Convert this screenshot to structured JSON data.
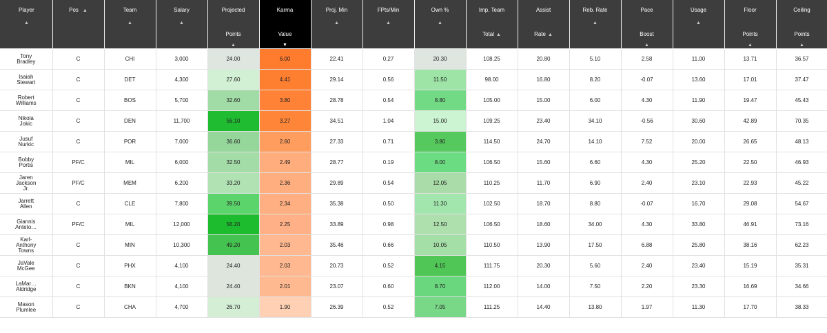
{
  "table": {
    "sorted_column": "karma",
    "columns": [
      {
        "key": "player",
        "lines": [
          "Player"
        ],
        "arrow": "below"
      },
      {
        "key": "pos",
        "lines": [
          "Pos"
        ],
        "arrow": "right"
      },
      {
        "key": "team",
        "lines": [
          "Team"
        ],
        "arrow": "below"
      },
      {
        "key": "salary",
        "lines": [
          "Salary"
        ],
        "arrow": "below"
      },
      {
        "key": "proj_points",
        "lines": [
          "Projected",
          "Points"
        ],
        "arrow": "below3"
      },
      {
        "key": "karma",
        "lines": [
          "Karma",
          "Value"
        ],
        "arrow": "below3"
      },
      {
        "key": "proj_min",
        "lines": [
          "Proj. Min"
        ],
        "arrow": "below"
      },
      {
        "key": "fpts_min",
        "lines": [
          "FPts/Min"
        ],
        "arrow": "below"
      },
      {
        "key": "own",
        "lines": [
          "Own %"
        ],
        "arrow": "below"
      },
      {
        "key": "imp_total",
        "lines": [
          "Imp. Team",
          "Total"
        ],
        "arrow": "inline2"
      },
      {
        "key": "assist_rate",
        "lines": [
          "Assist",
          "Rate"
        ],
        "arrow": "inline2"
      },
      {
        "key": "reb_rate",
        "lines": [
          "Reb. Rate"
        ],
        "arrow": "below"
      },
      {
        "key": "pace_boost",
        "lines": [
          "Pace",
          "Boost"
        ],
        "arrow": "below3"
      },
      {
        "key": "usage",
        "lines": [
          "Usage"
        ],
        "arrow": "below"
      },
      {
        "key": "floor",
        "lines": [
          "Floor",
          "Points"
        ],
        "arrow": "below3"
      },
      {
        "key": "ceiling",
        "lines": [
          "Ceiling",
          "Points"
        ],
        "arrow": "below3"
      }
    ],
    "rows": [
      {
        "player": [
          "Tony",
          "Bradley"
        ],
        "pos": "C",
        "team": "CHI",
        "salary": "3,000",
        "proj_points": "24.00",
        "karma": "6.00",
        "proj_min": "22.41",
        "fpts_min": "0.27",
        "own": "20.30",
        "imp_total": "108.25",
        "assist_rate": "20.80",
        "reb_rate": "5.10",
        "pace_boost": "2.58",
        "usage": "11.00",
        "floor": "13.71",
        "ceiling": "36.57",
        "colors": {
          "proj_points": "#dfe6df",
          "karma": "#ff7b2e",
          "own": "#dfe6df"
        }
      },
      {
        "player": [
          "Isaiah",
          "Stewart"
        ],
        "pos": "C",
        "team": "DET",
        "salary": "4,300",
        "proj_points": "27.60",
        "karma": "4.41",
        "proj_min": "29.14",
        "fpts_min": "0.56",
        "own": "11.50",
        "imp_total": "98.00",
        "assist_rate": "16.80",
        "reb_rate": "8.20",
        "pace_boost": "-0.07",
        "usage": "13.60",
        "floor": "17.01",
        "ceiling": "37.47",
        "colors": {
          "proj_points": "#d2f0d4",
          "karma": "#ff7f31",
          "own": "#9de4a6"
        }
      },
      {
        "player": [
          "Robert",
          "Williams"
        ],
        "pos": "C",
        "team": "BOS",
        "salary": "5,700",
        "proj_points": "32.60",
        "karma": "3.80",
        "proj_min": "28.78",
        "fpts_min": "0.54",
        "own": "8.80",
        "imp_total": "105.00",
        "assist_rate": "15.00",
        "reb_rate": "6.00",
        "pace_boost": "4.30",
        "usage": "11.90",
        "floor": "19.47",
        "ceiling": "45.43",
        "colors": {
          "proj_points": "#a1dba5",
          "karma": "#ff8236",
          "own": "#72d985"
        }
      },
      {
        "player": [
          "Nikola",
          "Jokic"
        ],
        "pos": "C",
        "team": "DEN",
        "salary": "11,700",
        "proj_points": "56.10",
        "karma": "3.27",
        "proj_min": "34.51",
        "fpts_min": "1.04",
        "own": "15.00",
        "imp_total": "109.25",
        "assist_rate": "23.40",
        "reb_rate": "34.10",
        "pace_boost": "-0.56",
        "usage": "30.60",
        "floor": "42.89",
        "ceiling": "70.35",
        "colors": {
          "proj_points": "#1fbb30",
          "karma": "#ff8639",
          "own": "#ccf3d2"
        }
      },
      {
        "player": [
          "Jusuf",
          "Nurkic"
        ],
        "pos": "C",
        "team": "POR",
        "salary": "7,000",
        "proj_points": "36.60",
        "karma": "2.60",
        "proj_min": "27.33",
        "fpts_min": "0.71",
        "own": "3.80",
        "imp_total": "114.50",
        "assist_rate": "24.70",
        "reb_rate": "14.10",
        "pace_boost": "7.52",
        "usage": "20.00",
        "floor": "26.65",
        "ceiling": "48.13",
        "colors": {
          "proj_points": "#95d69a",
          "karma": "#ff9d5e",
          "own": "#55c95d"
        }
      },
      {
        "player": [
          "Bobby",
          "Portis"
        ],
        "pos": "PF/C",
        "team": "MIL",
        "salary": "6,000",
        "proj_points": "32.50",
        "karma": "2.49",
        "proj_min": "28.77",
        "fpts_min": "0.19",
        "own": "8.00",
        "imp_total": "106.50",
        "assist_rate": "15.60",
        "reb_rate": "6.60",
        "pace_boost": "4.30",
        "usage": "25.20",
        "floor": "22.50",
        "ceiling": "46.93",
        "colors": {
          "proj_points": "#a4dca8",
          "karma": "#ffad7d",
          "own": "#6cdc82"
        }
      },
      {
        "player": [
          "Jaren",
          "Jackson",
          "Jr."
        ],
        "pos": "PF/C",
        "team": "MEM",
        "salary": "6,200",
        "proj_points": "33.20",
        "karma": "2.36",
        "proj_min": "29.89",
        "fpts_min": "0.54",
        "own": "12.05",
        "imp_total": "110.25",
        "assist_rate": "11.70",
        "reb_rate": "6.90",
        "pace_boost": "2.40",
        "usage": "23.10",
        "floor": "22.93",
        "ceiling": "45.22",
        "colors": {
          "proj_points": "#b1e2b4",
          "karma": "#ffae7f",
          "own": "#a9dca9"
        }
      },
      {
        "player": [
          "Jarrett",
          "Allen"
        ],
        "pos": "C",
        "team": "CLE",
        "salary": "7,800",
        "proj_points": "39.50",
        "karma": "2.34",
        "proj_min": "35.38",
        "fpts_min": "0.50",
        "own": "11.30",
        "imp_total": "102.50",
        "assist_rate": "18.70",
        "reb_rate": "8.80",
        "pace_boost": "-0.07",
        "usage": "16.70",
        "floor": "29.08",
        "ceiling": "54.67",
        "colors": {
          "proj_points": "#5cd46c",
          "karma": "#ffaf81",
          "own": "#a3e6ad"
        }
      },
      {
        "player": [
          "Giannis",
          "Anteto…"
        ],
        "pos": "PF/C",
        "team": "MIL",
        "salary": "12,000",
        "proj_points": "56.20",
        "karma": "2.25",
        "proj_min": "33.89",
        "fpts_min": "0.98",
        "own": "12.50",
        "imp_total": "106.50",
        "assist_rate": "18.60",
        "reb_rate": "34.00",
        "pace_boost": "4.30",
        "usage": "33.80",
        "floor": "46.91",
        "ceiling": "73.16",
        "colors": {
          "proj_points": "#1dbc2e",
          "karma": "#ffb086",
          "own": "#aee0ae"
        }
      },
      {
        "player": [
          "Karl-",
          "Anthony",
          "Towns"
        ],
        "pos": "C",
        "team": "MIN",
        "salary": "10,300",
        "proj_points": "49.20",
        "karma": "2.03",
        "proj_min": "35.46",
        "fpts_min": "0.66",
        "own": "10.05",
        "imp_total": "110.50",
        "assist_rate": "13.90",
        "reb_rate": "17.50",
        "pace_boost": "6.88",
        "usage": "25.80",
        "floor": "38.16",
        "ceiling": "62.23",
        "colors": {
          "proj_points": "#45c350",
          "karma": "#ffb88f",
          "own": "#a5dfa8"
        }
      },
      {
        "player": [
          "JaVale",
          "McGee"
        ],
        "pos": "C",
        "team": "PHX",
        "salary": "4,100",
        "proj_points": "24.40",
        "karma": "2.03",
        "proj_min": "20.73",
        "fpts_min": "0.52",
        "own": "4.15",
        "imp_total": "111.75",
        "assist_rate": "20.30",
        "reb_rate": "5.60",
        "pace_boost": "2.40",
        "usage": "23.40",
        "floor": "15.19",
        "ceiling": "35.31",
        "colors": {
          "proj_points": "#dde5dd",
          "karma": "#ffb88f",
          "own": "#4fc655"
        }
      },
      {
        "player": [
          "LaMar…",
          "Aldridge"
        ],
        "pos": "C",
        "team": "BKN",
        "salary": "4,100",
        "proj_points": "24.40",
        "karma": "2.01",
        "proj_min": "23.07",
        "fpts_min": "0.60",
        "own": "8.70",
        "imp_total": "112.00",
        "assist_rate": "14.00",
        "reb_rate": "7.50",
        "pace_boost": "2.20",
        "usage": "23.30",
        "floor": "16.69",
        "ceiling": "34.66",
        "colors": {
          "proj_points": "#dde5dd",
          "karma": "#ffb990",
          "own": "#6ad67e"
        }
      },
      {
        "player": [
          "Mason",
          "Plumlee"
        ],
        "pos": "C",
        "team": "CHA",
        "salary": "4,700",
        "proj_points": "26.70",
        "karma": "1.90",
        "proj_min": "26.39",
        "fpts_min": "0.52",
        "own": "7.05",
        "imp_total": "111.25",
        "assist_rate": "14.40",
        "reb_rate": "13.80",
        "pace_boost": "1.97",
        "usage": "11.30",
        "floor": "17.70",
        "ceiling": "38.33",
        "colors": {
          "proj_points": "#d3eed4",
          "karma": "#ffd0b3",
          "own": "#79d788"
        }
      }
    ]
  }
}
